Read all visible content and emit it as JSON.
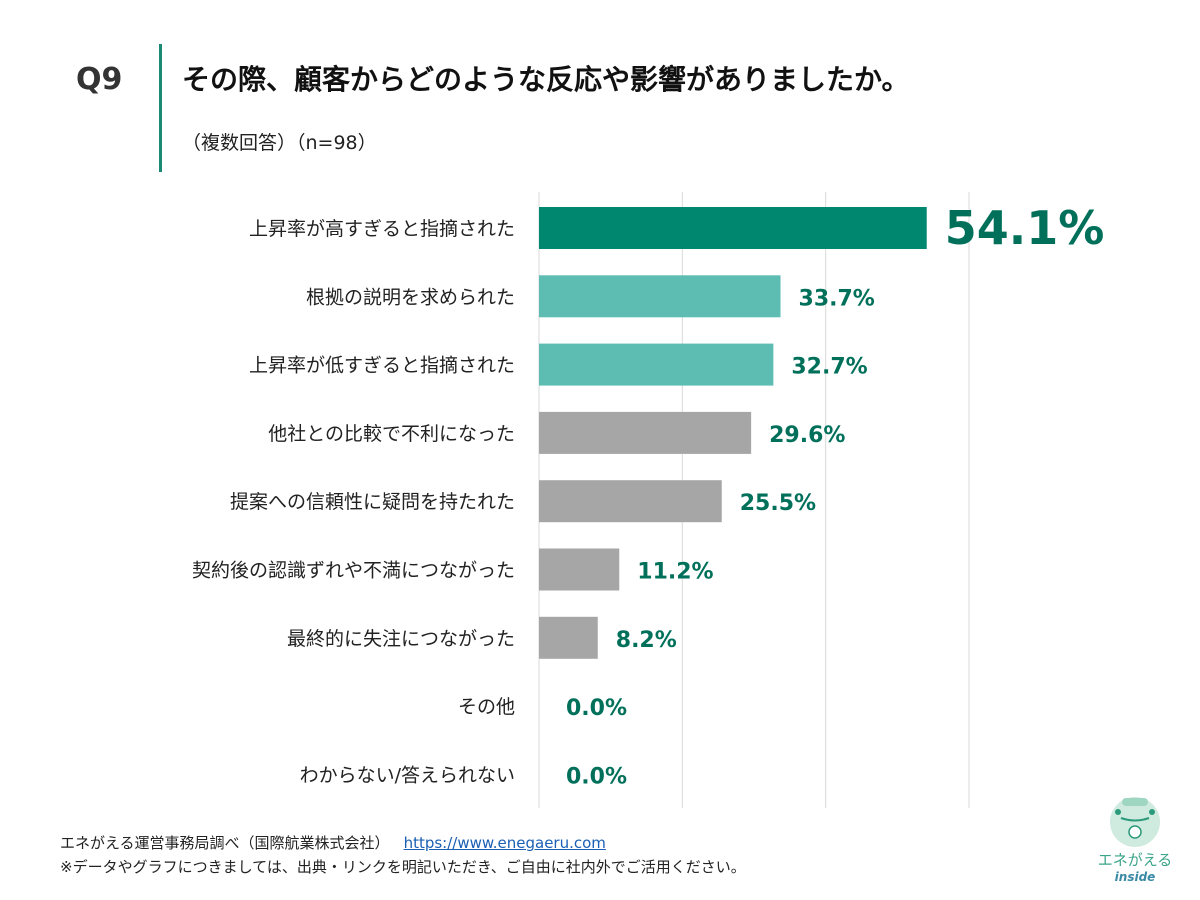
{
  "question": {
    "number": "Q9",
    "title": "その際、顧客からどのような反応や影響がありましたか。",
    "subtitle": "（複数回答）（n=98）"
  },
  "chart_data": {
    "type": "bar",
    "orientation": "horizontal",
    "categories": [
      "上昇率が高すぎると指摘された",
      "根拠の説明を求められた",
      "上昇率が低すぎると指摘された",
      "他社との比較で不利になった",
      "提案への信頼性に疑問を持たれた",
      "契約後の認識ずれや不満につながった",
      "最終的に失注につながった",
      "その他",
      "わからない/答えられない"
    ],
    "values": [
      54.1,
      33.7,
      32.7,
      29.6,
      25.5,
      11.2,
      8.2,
      0.0,
      0.0
    ],
    "data_labels": [
      "54.1%",
      "33.7%",
      "32.7%",
      "29.6%",
      "25.5%",
      "11.2%",
      "8.2%",
      "0.0%",
      "0.0%"
    ],
    "bar_colors": [
      "#00876f",
      "#5dbdb3",
      "#5dbdb3",
      "#a6a6a6",
      "#a6a6a6",
      "#a6a6a6",
      "#a6a6a6",
      "#a6a6a6",
      "#a6a6a6"
    ],
    "label_color": "#00705a",
    "xlim": [
      0,
      60
    ],
    "grid": true,
    "gridlines": [
      0,
      20,
      40,
      60
    ],
    "legend": "none"
  },
  "footer": {
    "source": "エネがえる運営事務局調べ（国際航業株式会社）",
    "link": "https://www.enegaeru.com",
    "note": "※データやグラフにつきましては、出典・リンクを明記いただき、ご自由に社内外でご活用ください。"
  },
  "logo": {
    "text": "エネがえる",
    "sub": "inside"
  }
}
